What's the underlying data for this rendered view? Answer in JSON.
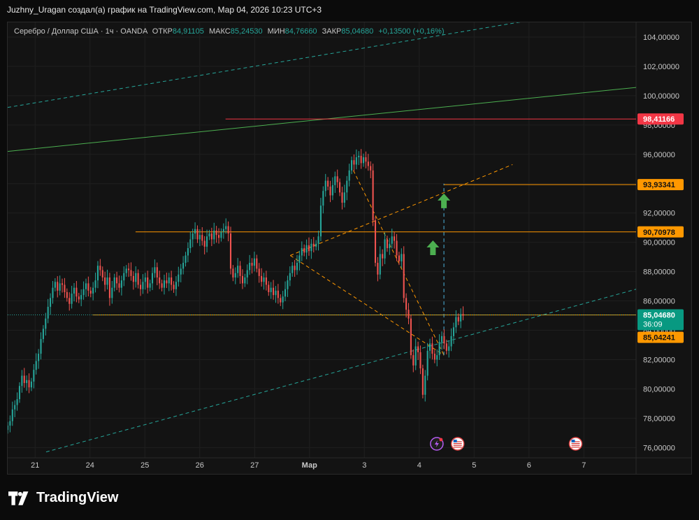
{
  "header": {
    "caption": "Juzhny_Uragan создал(а) график на TradingView.com, Мар 04, 2026 10:23 UTC+3"
  },
  "legend": {
    "symbol": "Серебро / Доллар США · 1ч · OANDA",
    "open_label": "ОТКР",
    "open": "84,91105",
    "high_label": "МАКС",
    "high": "85,24530",
    "low_label": "МИН",
    "low": "84,76660",
    "close_label": "ЗАКР",
    "close": "85,04680",
    "change": "+0,13500 (+0,16%)"
  },
  "brand": {
    "name": "TradingView"
  },
  "colors": {
    "background": "#131313",
    "up": "#26a69a",
    "down": "#ef5350",
    "grid": "#1f1f1f",
    "resistance": "#f23645",
    "orange": "#ff9800",
    "green_trend": "#4caf50",
    "teal_channel": "#26a69a",
    "arrow": "#4caf50"
  },
  "chart_data": {
    "type": "candlestick",
    "y_axis": {
      "min": 75.3,
      "max": 105.0,
      "ticks": [
        "104,00000",
        "102,00000",
        "100,00000",
        "98,00000",
        "96,00000",
        "94,00000",
        "92,00000",
        "90,00000",
        "88,00000",
        "86,00000",
        "84,00000",
        "82,00000",
        "80,00000",
        "78,00000",
        "76,00000"
      ],
      "tick_values": [
        104,
        102,
        100,
        98,
        96,
        94,
        92,
        90,
        88,
        86,
        84,
        82,
        80,
        78,
        76
      ]
    },
    "x_axis": {
      "labels": [
        "21",
        "24",
        "25",
        "26",
        "27",
        "Мар",
        "3",
        "4",
        "5",
        "6",
        "7"
      ],
      "label_positions": [
        0.5,
        1.5,
        2.5,
        3.5,
        4.5,
        5.5,
        6.5,
        7.5,
        8.5,
        9.5,
        10.5
      ]
    },
    "price_labels": [
      {
        "text": "98,41166",
        "value": 98.41166,
        "color": "#f23645"
      },
      {
        "text": "93,93341",
        "value": 93.93341,
        "color": "#ff9800"
      },
      {
        "text": "90,70978",
        "value": 90.70978,
        "color": "#ff9800"
      },
      {
        "text": "85,04680",
        "sub": "36:09",
        "value": 85.0468,
        "color": "#089981"
      },
      {
        "text": "85,04241",
        "value": 85.04241,
        "color": "#ff9800"
      }
    ],
    "horizontal_lines": [
      {
        "value": 98.41166,
        "from_day": 3.97,
        "color": "#f23645",
        "style": "solid"
      },
      {
        "value": 93.93341,
        "from_day": 7.95,
        "color": "#ff9800",
        "style": "solid"
      },
      {
        "value": 90.70978,
        "from_day": 2.33,
        "color": "#ff9800",
        "style": "solid"
      },
      {
        "value": 85.04241,
        "from_day": 1.55,
        "color": "#ff9800",
        "style": "solid"
      },
      {
        "value": 85.0468,
        "from_day": 0.0,
        "color": "#26a69a",
        "style": "dotted"
      }
    ],
    "trend_lines": [
      {
        "from": [
          0.0,
          99.2
        ],
        "to": [
          11.55,
          106.4
        ],
        "color": "#26a69a",
        "style": "dashed"
      },
      {
        "from": [
          0.0,
          96.2
        ],
        "to": [
          11.55,
          100.6
        ],
        "color": "#4caf50",
        "style": "solid"
      },
      {
        "from": [
          0.7,
          75.7
        ],
        "to": [
          11.55,
          86.9
        ],
        "color": "#26a69a",
        "style": "dashed"
      },
      {
        "from": [
          5.15,
          89.1
        ],
        "to": [
          9.2,
          95.3
        ],
        "color": "#ff9800",
        "style": "dashed"
      },
      {
        "from": [
          5.15,
          89.1
        ],
        "to": [
          7.95,
          82.3
        ],
        "color": "#ff9800",
        "style": "dashed"
      },
      {
        "from": [
          6.3,
          94.9
        ],
        "to": [
          7.95,
          82.3
        ],
        "color": "#ff9800",
        "style": "dashed"
      },
      {
        "from": [
          7.95,
          82.3
        ],
        "to": [
          7.95,
          94.0
        ],
        "color": "#4db6e0",
        "style": "dashed"
      }
    ],
    "arrows": [
      {
        "day": 7.95,
        "value": 92.8
      },
      {
        "day": 7.75,
        "value": 89.6
      }
    ],
    "event_icons": [
      {
        "day": 7.82,
        "kind": "bolt-icon"
      },
      {
        "day": 8.2,
        "kind": "us-flag-icon"
      },
      {
        "day": 10.35,
        "kind": "us-flag-icon"
      }
    ],
    "ohlc_hourly_closes": [
      77.5,
      77.8,
      78.6,
      78.9,
      79.3,
      80.2,
      80.9,
      80.4,
      80.6,
      80.1,
      80.5,
      81.3,
      81.9,
      82.4,
      83.4,
      84.1,
      84.8,
      85.6,
      86.2,
      86.9,
      87.3,
      86.7,
      87.2,
      87.1,
      86.6,
      86.2,
      85.8,
      86.5,
      86.9,
      86.3,
      86.1,
      86.4,
      86.8,
      87.2,
      86.7,
      86.5,
      86.9,
      87.4,
      88.4,
      88.1,
      87.6,
      87.1,
      87.6,
      86.2,
      86.9,
      87.6,
      87.2,
      86.9,
      87.4,
      87.9,
      88.2,
      88.1,
      87.7,
      87.3,
      87.9,
      87.1,
      86.8,
      87.3,
      87.6,
      86.9,
      87.2,
      87.9,
      88.3,
      87.6,
      87.2,
      86.9,
      87.4,
      87.2,
      87.6,
      87.1,
      86.8,
      87.3,
      87.8,
      88.2,
      88.6,
      89.1,
      89.6,
      90.2,
      90.6,
      90.9,
      90.2,
      90.5,
      90.1,
      89.7,
      90.4,
      90.6,
      90.2,
      90.8,
      90.5,
      90.3,
      90.7,
      90.9,
      91.1,
      90.6,
      88.2,
      87.6,
      87.9,
      88.4,
      87.7,
      87.2,
      87.6,
      88.1,
      88.6,
      88.4,
      88.9,
      88.2,
      87.7,
      87.3,
      87.6,
      87.1,
      86.6,
      86.9,
      86.4,
      86.7,
      86.2,
      85.9,
      86.3,
      86.8,
      87.4,
      87.9,
      88.4,
      88.1,
      88.6,
      89.1,
      89.6,
      89.3,
      89.8,
      89.4,
      89.9,
      89.7,
      89.9,
      90.4,
      92.5,
      93.5,
      94.2,
      93.8,
      93.2,
      93.9,
      94.5,
      94.1,
      93.4,
      92.7,
      93.4,
      94.2,
      94.9,
      95.6,
      95.3,
      95.8,
      95.9,
      95.4,
      95.8,
      95.5,
      95.2,
      94.9,
      91.5,
      88.6,
      87.8,
      89.2,
      88.9,
      90.2,
      89.6,
      89.9,
      90.4,
      90.1,
      89.1,
      88.7,
      89.2,
      86.2,
      85.4,
      84.8,
      82.3,
      81.6,
      82.9,
      82.5,
      81.4,
      79.6,
      80.9,
      82.6,
      83.1,
      82.4,
      82.0,
      82.3,
      83.2,
      83.6,
      83.1,
      82.6,
      82.9,
      83.6,
      84.2,
      84.9,
      84.6,
      85.1,
      85.0
    ],
    "series_start_day": 0.0,
    "series_end_day": 8.3
  }
}
